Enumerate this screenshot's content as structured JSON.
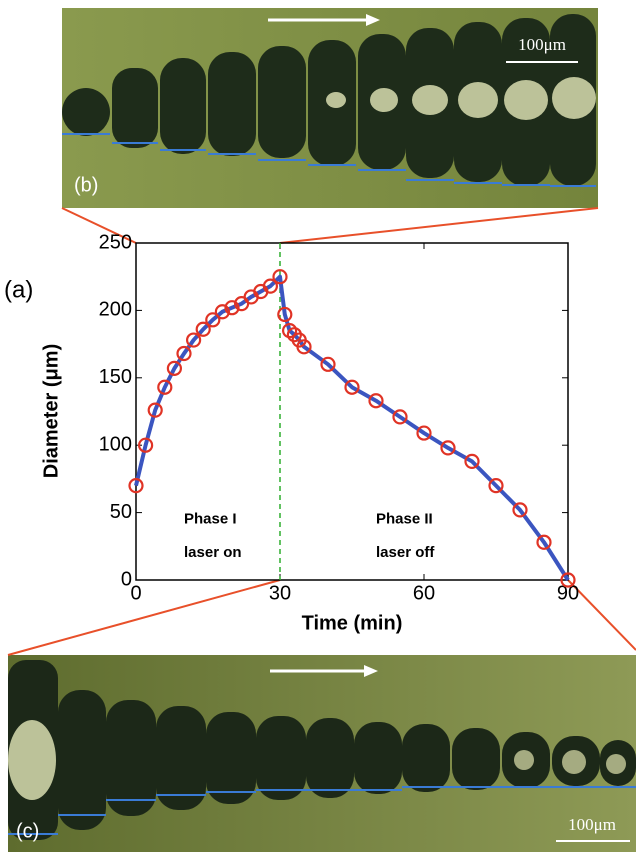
{
  "chart_data": {
    "type": "line",
    "xlabel": "Time (min)",
    "ylabel": "Diameter (μm)",
    "x": [
      0,
      2,
      4,
      6,
      8,
      10,
      12,
      14,
      16,
      18,
      20,
      22,
      24,
      26,
      28,
      30,
      31,
      32,
      33,
      34,
      35,
      40,
      45,
      50,
      55,
      60,
      65,
      70,
      75,
      80,
      85,
      90
    ],
    "series": [
      {
        "color": "#3b55c0",
        "marker_color": "#e03325",
        "values": [
          70,
          100,
          126,
          143,
          157,
          168,
          178,
          186,
          193,
          199,
          202,
          205,
          210,
          214,
          218,
          225,
          197,
          185,
          182,
          178,
          173,
          160,
          143,
          133,
          121,
          109,
          98,
          88,
          70,
          52,
          28,
          0
        ]
      }
    ],
    "xlim": [
      0,
      90
    ],
    "xticks": [
      0,
      30,
      60,
      90
    ],
    "ylim": [
      0,
      250
    ],
    "yticks": [
      0,
      50,
      100,
      150,
      200,
      250
    ],
    "divider_x": 30,
    "divider_color": "#2fae2f",
    "annotations": [
      "Phase I",
      "laser on",
      "Phase II",
      "laser off"
    ]
  },
  "panels": {
    "a": "(a)",
    "b": "(b)",
    "c": "(c)",
    "scale_b": "100μm",
    "scale_c": "100μm"
  }
}
